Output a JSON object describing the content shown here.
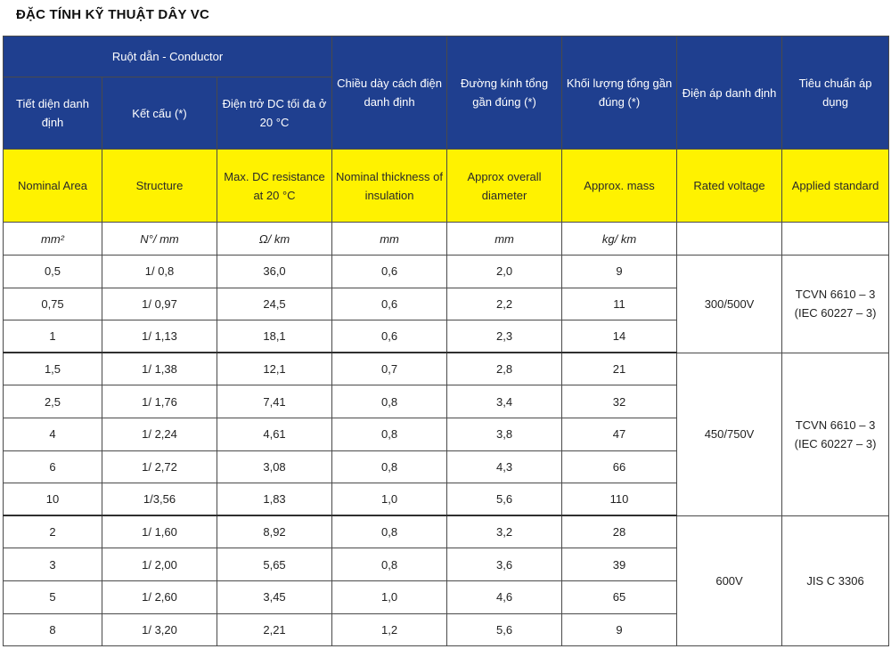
{
  "title": "ĐẶC TÍNH KỸ THUẬT DÂY VC",
  "header": {
    "group": "Ruột dẫn - Conductor",
    "vn": [
      "Tiết diện danh định",
      "Kết cấu (*)",
      "Điện trở DC tối đa ở 20 °C",
      "Chiều dày cách điện danh định",
      "Đường kính tổng gần đúng (*)",
      "Khối lượng tổng gần đúng (*)",
      "Điện áp danh định",
      "Tiêu chuẩn áp dụng"
    ],
    "en": [
      "Nominal Area",
      "Structure",
      "Max. DC resistance at 20 °C",
      "Nominal thickness of insulation",
      "Approx overall diameter",
      "Approx. mass",
      "Rated voltage",
      "Applied standard"
    ],
    "units": [
      "mm²",
      "N°/ mm",
      "Ω/ km",
      "mm",
      "mm",
      "kg/ km",
      "",
      ""
    ]
  },
  "groups": [
    {
      "voltage": "300/500V",
      "standard": "TCVN 6610 – 3 (IEC 60227 – 3)",
      "rows": [
        [
          "0,5",
          "1/ 0,8",
          "36,0",
          "0,6",
          "2,0",
          "9"
        ],
        [
          "0,75",
          "1/ 0,97",
          "24,5",
          "0,6",
          "2,2",
          "11"
        ],
        [
          "1",
          "1/ 1,13",
          "18,1",
          "0,6",
          "2,3",
          "14"
        ]
      ]
    },
    {
      "voltage": "450/750V",
      "standard": "TCVN 6610 – 3 (IEC 60227 – 3)",
      "rows": [
        [
          "1,5",
          "1/ 1,38",
          "12,1",
          "0,7",
          "2,8",
          "21"
        ],
        [
          "2,5",
          "1/ 1,76",
          "7,41",
          "0,8",
          "3,4",
          "32"
        ],
        [
          "4",
          "1/ 2,24",
          "4,61",
          "0,8",
          "3,8",
          "47"
        ],
        [
          "6",
          "1/ 2,72",
          "3,08",
          "0,8",
          "4,3",
          "66"
        ],
        [
          "10",
          "1/3,56",
          "1,83",
          "1,0",
          "5,6",
          "110"
        ]
      ]
    },
    {
      "voltage": "600V",
      "standard": "JIS C 3306",
      "rows": [
        [
          "2",
          "1/ 1,60",
          "8,92",
          "0,8",
          "3,2",
          "28"
        ],
        [
          "3",
          "1/ 2,00",
          "5,65",
          "0,8",
          "3,6",
          "39"
        ],
        [
          "5",
          "1/ 2,60",
          "3,45",
          "1,0",
          "4,6",
          "65"
        ],
        [
          "8",
          "1/ 3,20",
          "2,21",
          "1,2",
          "5,6",
          "9"
        ]
      ]
    }
  ],
  "colors": {
    "header_blue": "#1f3f8f",
    "header_yellow": "#fff200"
  }
}
